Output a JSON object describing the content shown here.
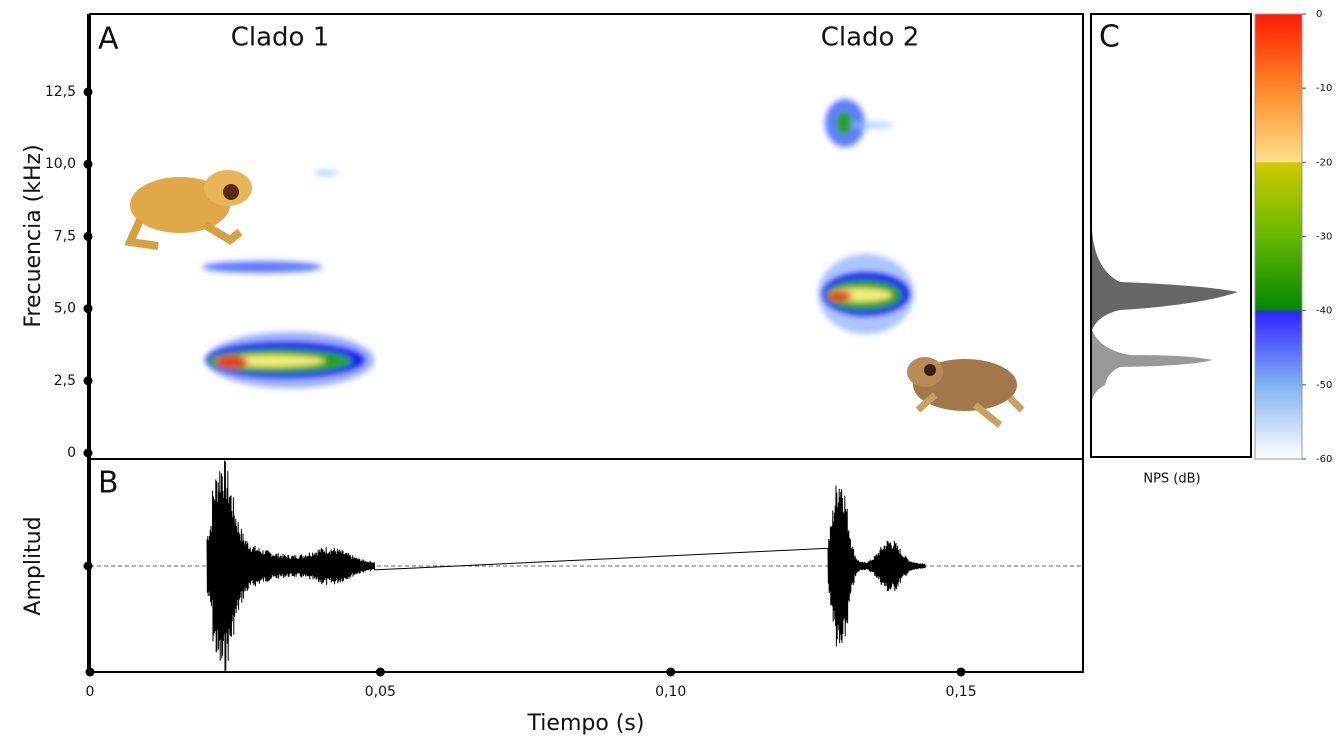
{
  "chart_data": [
    {
      "type": "spectrogram",
      "panel_label": "A",
      "ylabel": "Frecuencia (kHz)",
      "annotations": [
        "Clado 1",
        "Clado 2"
      ],
      "annotation_colors": [
        "#5aab1e",
        "#f2b21c"
      ],
      "xlim": [
        0,
        0.171
      ],
      "ylim": [
        0,
        15.2
      ],
      "yticks": [
        0,
        {
          "value": 2.5,
          "label": "2,5"
        },
        {
          "value": 5,
          "label": "5,0"
        },
        {
          "value": 7.5,
          "label": "7,5"
        },
        {
          "value": 10,
          "label": "10,0"
        },
        {
          "value": 12.5,
          "label": "12,5"
        }
      ]
    },
    {
      "type": "waveform",
      "panel_label": "B",
      "ylabel": "Amplitud",
      "xlabel": "Tiempo (s)",
      "xlim": [
        0,
        0.171
      ],
      "xticks": [
        0,
        {
          "value": 0.05,
          "label": "0,05"
        },
        {
          "value": 0.1,
          "label": "0,10"
        },
        {
          "value": 0.15,
          "label": "0,15"
        }
      ]
    },
    {
      "type": "spectrum",
      "panel_label": "C",
      "xlabel": "NPS (dB)"
    },
    {
      "type": "colorbar",
      "ylim": [
        -60,
        0
      ],
      "yticks": [
        0,
        -10,
        -20,
        -30,
        -40,
        -50,
        -60
      ]
    }
  ]
}
